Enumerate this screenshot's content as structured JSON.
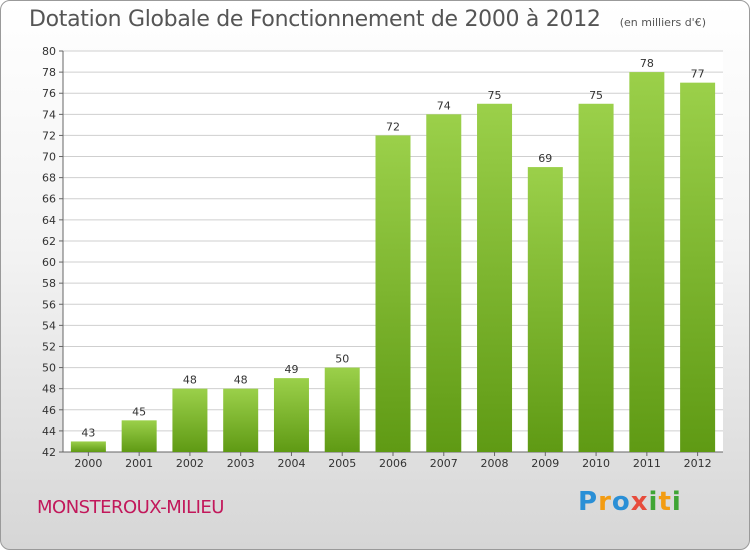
{
  "title": "Dotation Globale de Fonctionnement de 2000 à 2012",
  "subtitle": "(en milliers d'€)",
  "commune": "MONSTEROUX-MILIEU",
  "logo": {
    "letters": [
      "P",
      "r",
      "o",
      "x",
      "i",
      "t",
      "i"
    ],
    "colors": [
      "#2a8fd6",
      "#f39c12",
      "#2a8fd6",
      "#e74c3c",
      "#3fa535",
      "#f39c12",
      "#3fa535"
    ]
  },
  "colors": {
    "bar_top": "#9bd04a",
    "bar_bottom": "#5f9a14",
    "commune": "#c2185b"
  },
  "chart_data": {
    "type": "bar",
    "categories": [
      "2000",
      "2001",
      "2002",
      "2003",
      "2004",
      "2005",
      "2006",
      "2007",
      "2008",
      "2009",
      "2010",
      "2011",
      "2012"
    ],
    "values": [
      43,
      45,
      48,
      48,
      49,
      50,
      72,
      74,
      75,
      69,
      75,
      78,
      77
    ],
    "title": "Dotation Globale de Fonctionnement de 2000 à 2012",
    "subtitle": "(en milliers d'€)",
    "xlabel": "",
    "ylabel": "",
    "ylim": [
      42,
      80
    ],
    "yticks": [
      42,
      44,
      46,
      48,
      50,
      52,
      54,
      56,
      58,
      60,
      62,
      64,
      66,
      68,
      70,
      72,
      74,
      76,
      78,
      80
    ],
    "grid": true
  }
}
